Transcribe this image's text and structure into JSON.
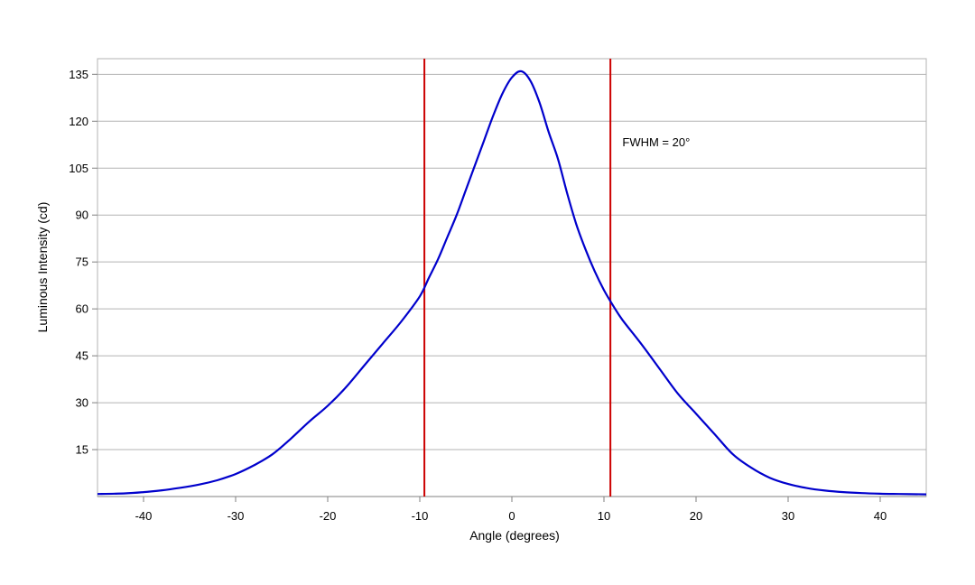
{
  "chart_data": {
    "type": "line",
    "title": "",
    "xlabel": "Angle (degrees)",
    "ylabel": "Luminous Intensity (cd)",
    "xlim": [
      -45,
      45
    ],
    "ylim": [
      0,
      140
    ],
    "x_ticks": [
      -40,
      -30,
      -20,
      -10,
      0,
      10,
      20,
      30,
      40
    ],
    "x_tick_labels": [
      "-40",
      "-30",
      "-20",
      "-10",
      "0",
      "10",
      "20",
      "30",
      "40"
    ],
    "y_ticks": [
      15,
      30,
      45,
      60,
      75,
      90,
      105,
      120,
      135
    ],
    "y_tick_labels": [
      "15",
      "30",
      "45",
      "60",
      "75",
      "90",
      "105",
      "120",
      "135"
    ],
    "grid": "horizontal",
    "legend": "none",
    "series": [
      {
        "color": "#0000cc",
        "x": [
          -45,
          -42,
          -40,
          -38,
          -36,
          -34,
          -32,
          -30,
          -28,
          -26,
          -24,
          -22,
          -20,
          -18,
          -16,
          -14,
          -12,
          -10,
          -9,
          -8,
          -7,
          -6,
          -5,
          -4,
          -3,
          -2,
          -1,
          0,
          1,
          2,
          3,
          4,
          5,
          6,
          7,
          8,
          9,
          10,
          11,
          12,
          14,
          16,
          18,
          20,
          22,
          24,
          26,
          28,
          30,
          32,
          34,
          36,
          38,
          40,
          42,
          45
        ],
        "values": [
          0.8,
          1.0,
          1.4,
          2.0,
          2.8,
          3.8,
          5.2,
          7.2,
          10.0,
          13.5,
          18.5,
          24.0,
          29.0,
          35.0,
          42.0,
          49.0,
          56.0,
          64.0,
          70.0,
          76.0,
          83.0,
          90.0,
          98.0,
          106.0,
          114.0,
          122.0,
          129.0,
          134.0,
          136.0,
          133.0,
          126.0,
          116.5,
          108.0,
          97.0,
          87.0,
          79.0,
          72.0,
          66.0,
          61.0,
          56.5,
          49.0,
          41.0,
          33.0,
          26.5,
          20.0,
          13.5,
          9.2,
          6.0,
          4.0,
          2.7,
          1.9,
          1.4,
          1.1,
          0.9,
          0.8,
          0.7
        ]
      }
    ],
    "vlines": [
      {
        "x": -9.5,
        "color": "#cc0000"
      },
      {
        "x": 10.7,
        "color": "#cc0000"
      }
    ],
    "annotations": [
      {
        "text": "FWHM = 20°",
        "x": 12,
        "y": 112
      }
    ]
  }
}
